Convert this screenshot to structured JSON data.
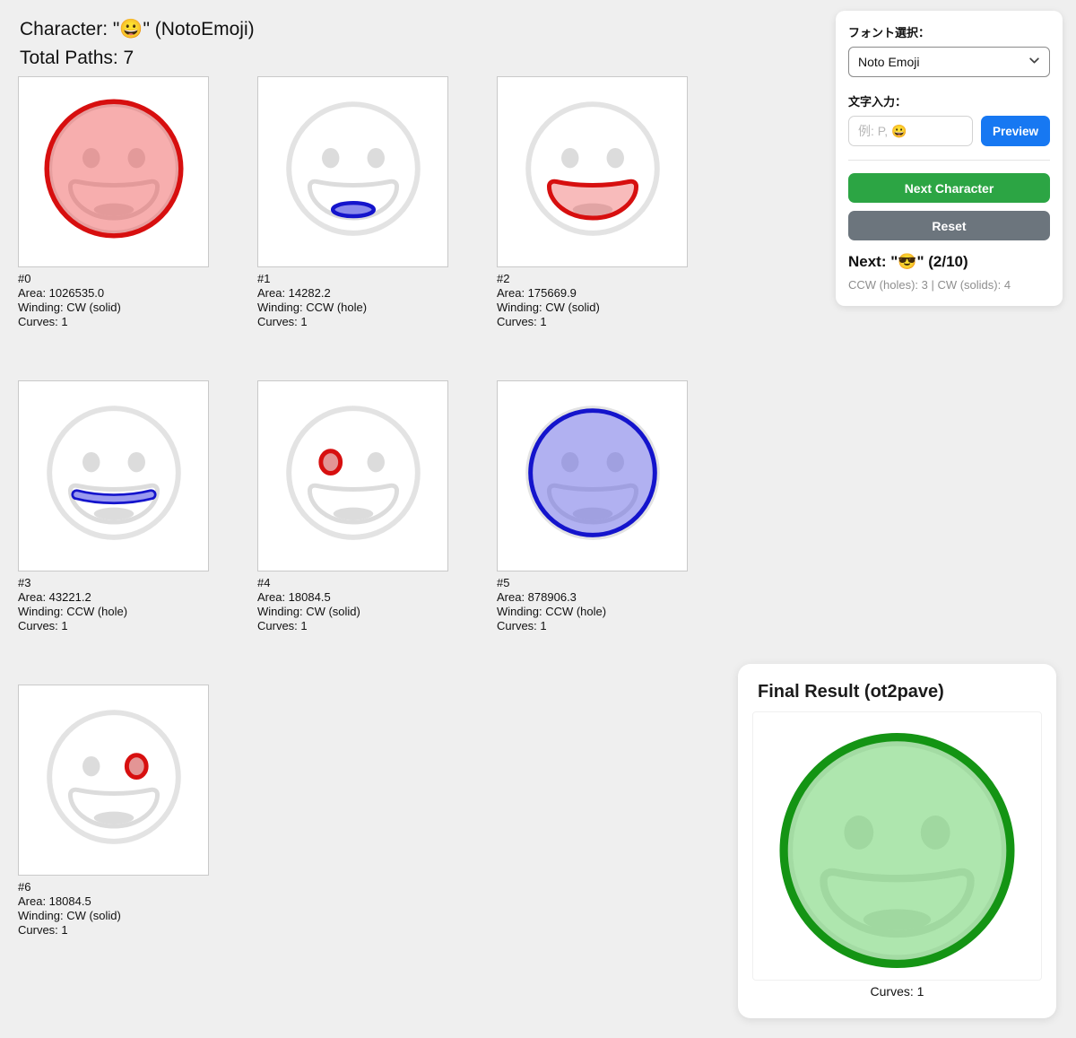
{
  "header": {
    "title": "Character: \"😀\" (NotoEmoji)",
    "total_paths": "Total Paths: 7"
  },
  "colors": {
    "highlight_red": "#d70f0f",
    "highlight_blue": "#1414cc",
    "result_green": "#149414",
    "accent_blue": "#1778f2",
    "button_green": "#2ca544",
    "button_gray": "#6c757d"
  },
  "cards": [
    {
      "num": "#0",
      "area": "Area: 1026535.0",
      "winding": "Winding: CW (solid)",
      "curves": "Curves: 1",
      "highlight": "face-outer"
    },
    {
      "num": "#1",
      "area": "Area: 14282.2",
      "winding": "Winding: CCW (hole)",
      "curves": "Curves: 1",
      "highlight": "tongue"
    },
    {
      "num": "#2",
      "area": "Area: 175669.9",
      "winding": "Winding: CW (solid)",
      "curves": "Curves: 1",
      "highlight": "mouth"
    },
    {
      "num": "#3",
      "area": "Area: 43221.2",
      "winding": "Winding: CCW (hole)",
      "curves": "Curves: 1",
      "highlight": "band"
    },
    {
      "num": "#4",
      "area": "Area: 18084.5",
      "winding": "Winding: CW (solid)",
      "curves": "Curves: 1",
      "highlight": "eye-left"
    },
    {
      "num": "#5",
      "area": "Area: 878906.3",
      "winding": "Winding: CCW (hole)",
      "curves": "Curves: 1",
      "highlight": "face-inner"
    },
    {
      "num": "#6",
      "area": "Area: 18084.5",
      "winding": "Winding: CW (solid)",
      "curves": "Curves: 1",
      "highlight": "eye-right"
    }
  ],
  "sidebar": {
    "font_label": "フォント選択：",
    "font_value": "Noto Emoji",
    "input_label": "文字入力：",
    "input_placeholder": "例: P, 😀",
    "preview_button": "Preview",
    "next_button": "Next Character",
    "reset_button": "Reset",
    "next_info": "Next: \"😎\" (2/10)",
    "winding_summary": "CCW (holes): 3 | CW (solids): 4"
  },
  "final": {
    "title": "Final Result (ot2pave)",
    "curves": "Curves: 1"
  }
}
